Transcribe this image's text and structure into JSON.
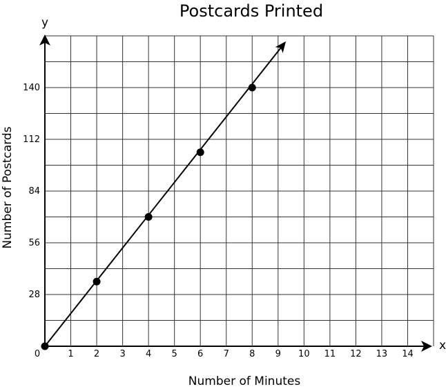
{
  "chart_data": {
    "type": "line",
    "title": "Postcards Printed",
    "xlabel": "Number of Minutes",
    "ylabel": "Number of Postcards",
    "x_axis_letter": "x",
    "y_axis_letter": "y",
    "origin_label": "0",
    "xlim": [
      0,
      15
    ],
    "ylim": [
      0,
      168
    ],
    "x_grid_step": 1,
    "y_grid_step": 14,
    "x_ticks": [
      1,
      2,
      3,
      4,
      5,
      6,
      7,
      8,
      9,
      10,
      11,
      12,
      13,
      14
    ],
    "y_ticks": [
      28,
      56,
      84,
      112,
      140
    ],
    "grid": true,
    "series": [
      {
        "x": [
          0,
          2,
          4,
          6,
          8
        ],
        "y": [
          0,
          35,
          70,
          105,
          140
        ],
        "line_end": [
          9.3,
          165
        ],
        "color": "#000000"
      }
    ]
  }
}
